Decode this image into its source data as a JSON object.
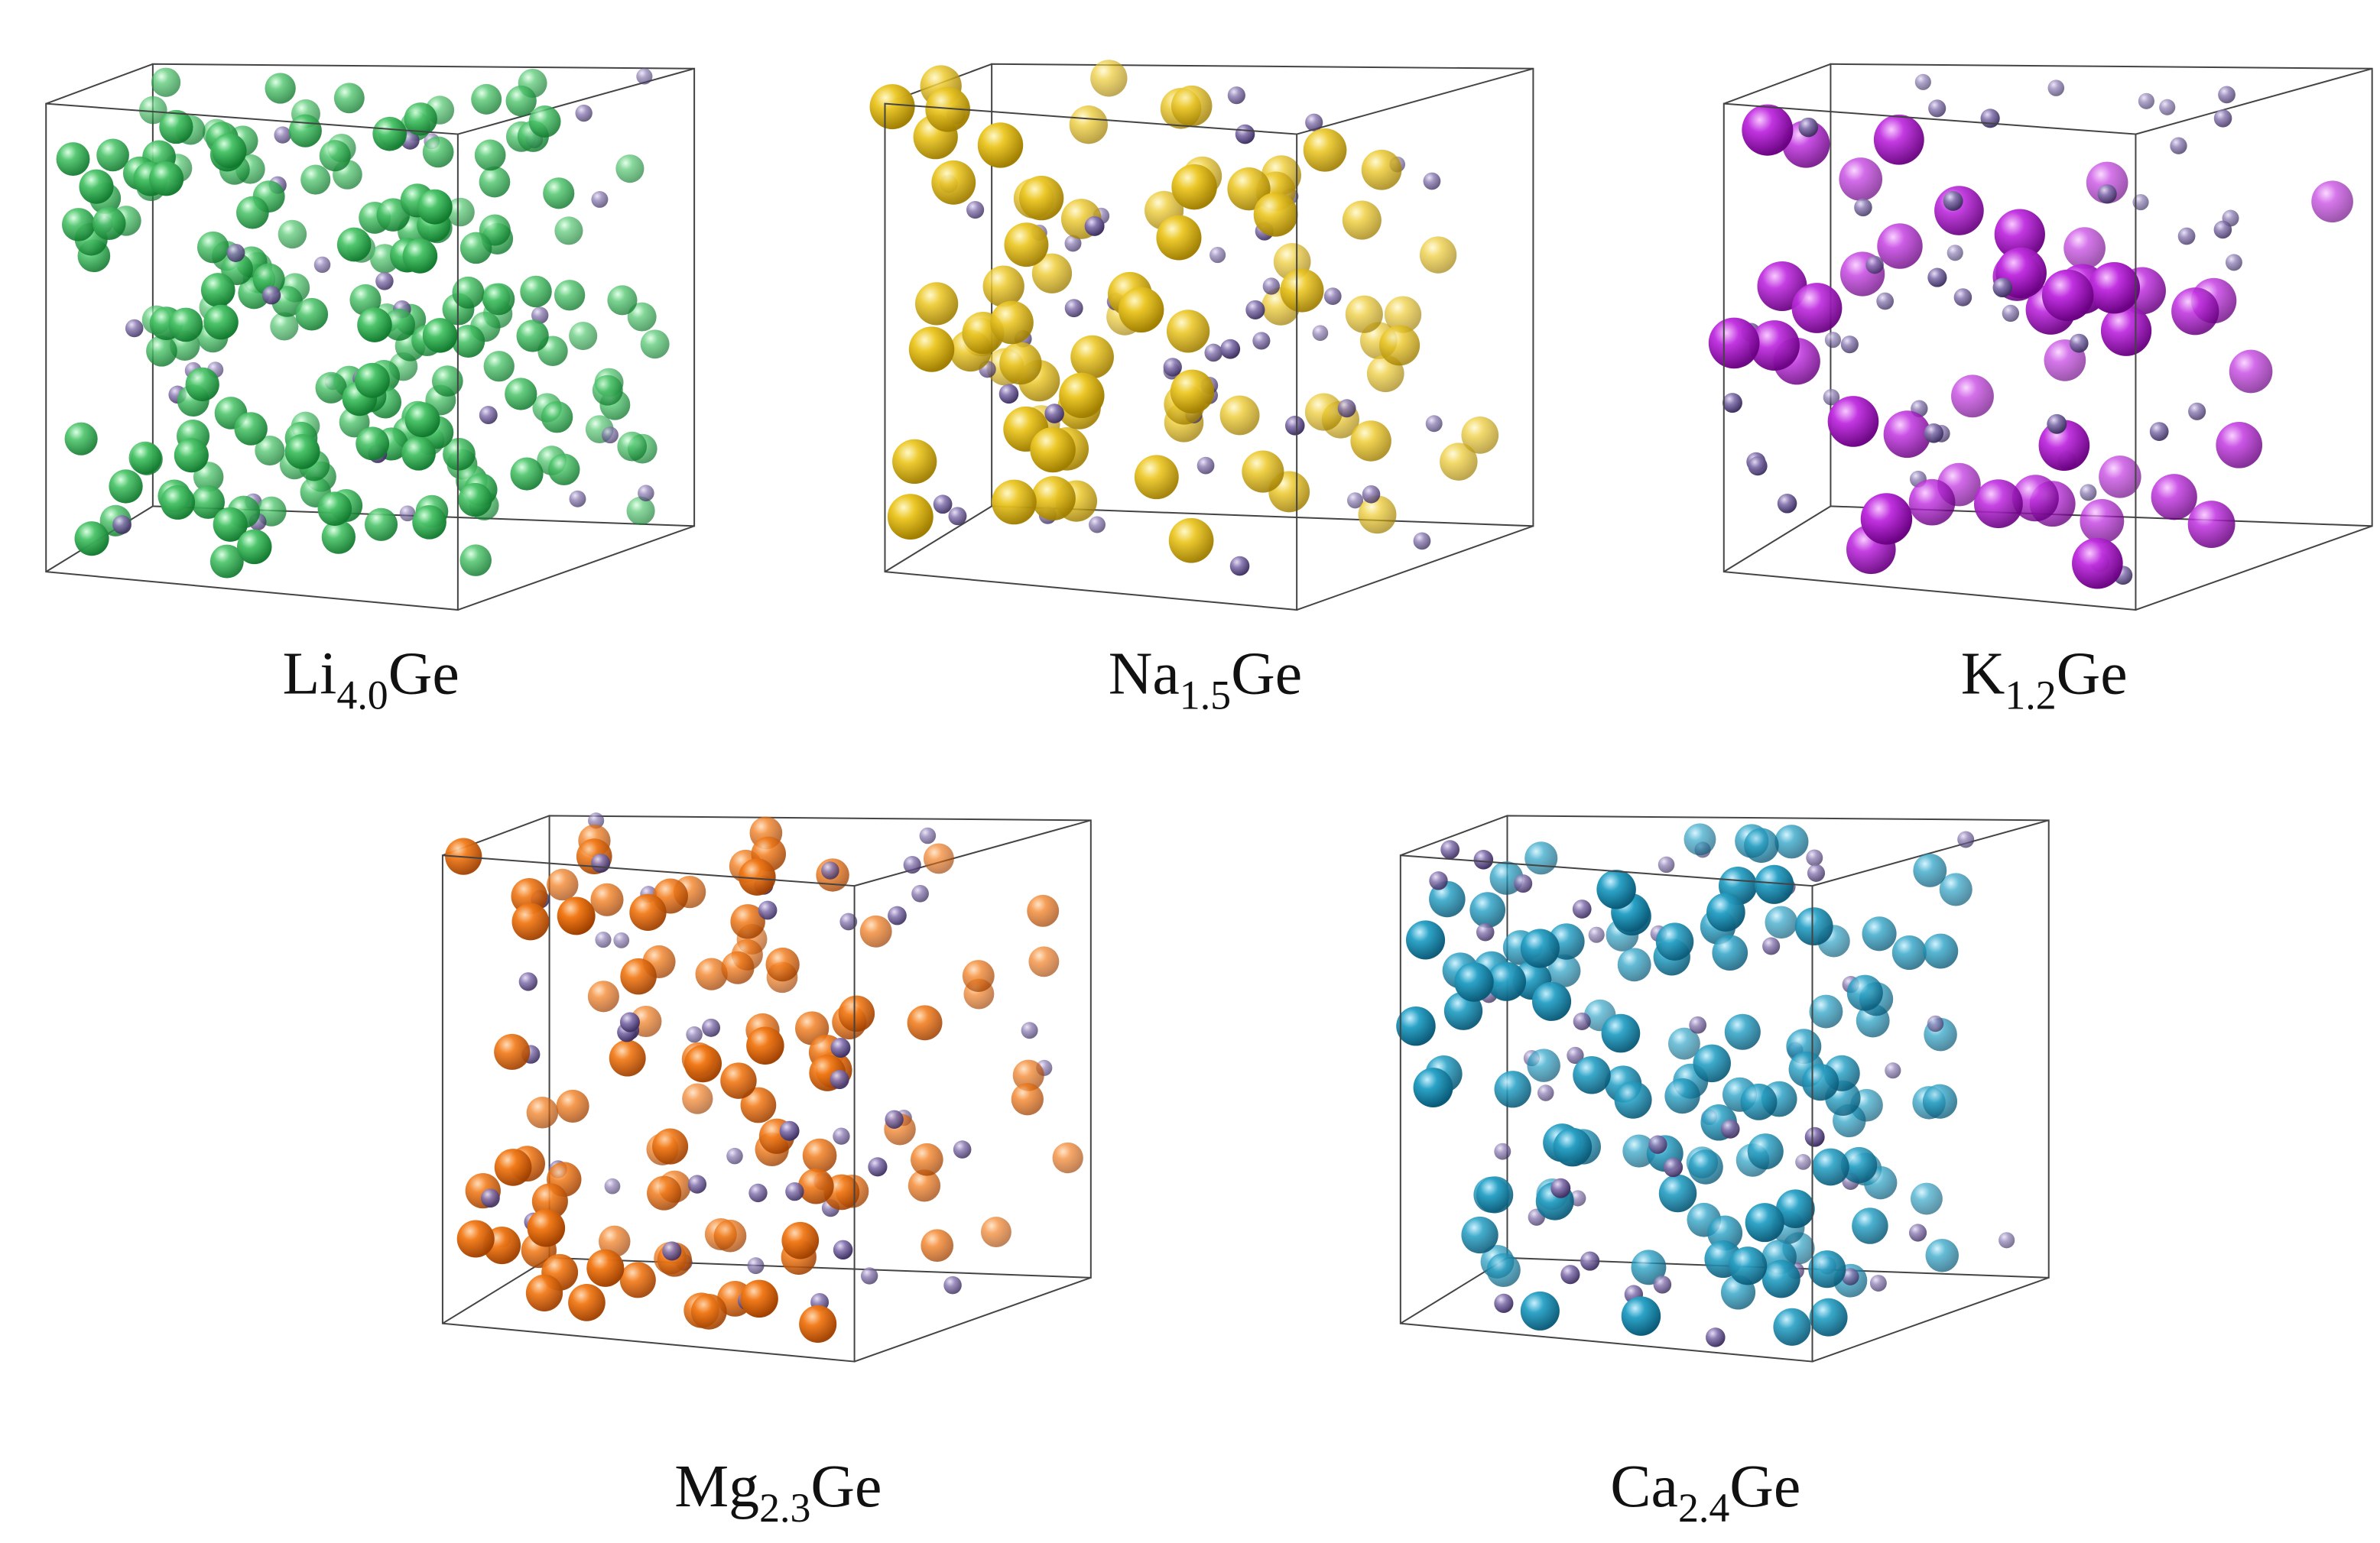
{
  "panels": [
    {
      "element": "Li",
      "subscript": "4.0",
      "suffix": "Ge"
    },
    {
      "element": "Na",
      "subscript": "1.5",
      "suffix": "Ge"
    },
    {
      "element": "K",
      "subscript": "1.2",
      "suffix": "Ge"
    },
    {
      "element": "Mg",
      "subscript": "2.3",
      "suffix": "Ge"
    },
    {
      "element": "Ca",
      "subscript": "2.4",
      "suffix": "Ge"
    }
  ]
}
